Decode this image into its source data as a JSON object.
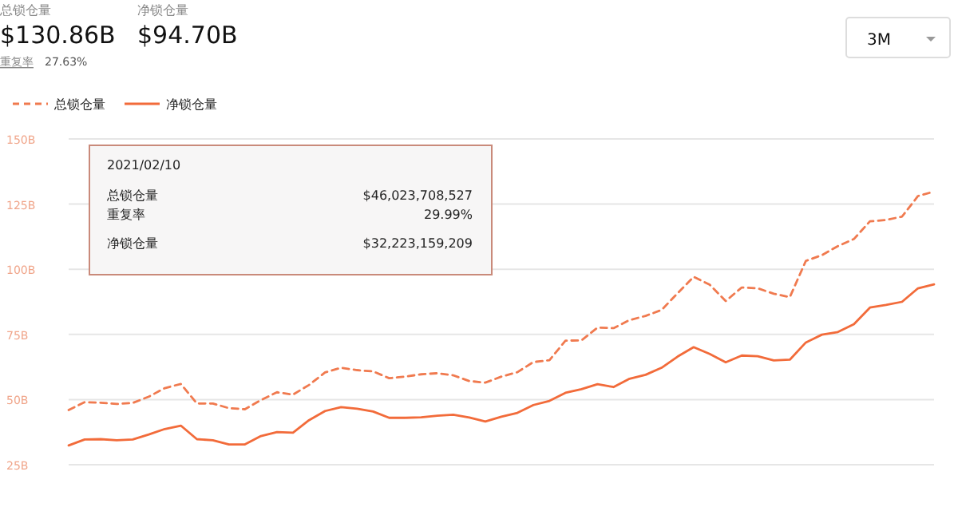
{
  "chart_data": {
    "type": "line",
    "categories": [
      null,
      null,
      null,
      null,
      null,
      null,
      null,
      null,
      null,
      null,
      null,
      null,
      null,
      null,
      null,
      null,
      null,
      null,
      null,
      null,
      null,
      null,
      null,
      null,
      null,
      null,
      null,
      null,
      null,
      null,
      null,
      null,
      null,
      null,
      null,
      null,
      null,
      null,
      null,
      null,
      null,
      null,
      null,
      null,
      null,
      null,
      null,
      null,
      null,
      null,
      null,
      null,
      null,
      null,
      null
    ],
    "series": [
      {
        "name": "总锁仓量",
        "color": "#f07a4f",
        "line_style": "dashed",
        "values": [
          46.0,
          49.0,
          48.8,
          48.3,
          48.7,
          51.1,
          54.4,
          56.0,
          48.5,
          48.5,
          46.7,
          46.3,
          49.8,
          52.8,
          51.9,
          55.6,
          60.4,
          62.2,
          61.3,
          60.8,
          58.2,
          58.8,
          59.7,
          60.1,
          59.3,
          57.1,
          56.5,
          58.8,
          60.5,
          64.4,
          65.1,
          72.6,
          72.7,
          77.6,
          77.4,
          80.5,
          82.1,
          84.4,
          90.8,
          97.1,
          94.1,
          87.8,
          93.0,
          92.7,
          90.6,
          89.3,
          103.2,
          105.4,
          108.9,
          111.6,
          118.4,
          118.9,
          120.2,
          128.1,
          129.8
        ]
      },
      {
        "name": "净锁仓量",
        "color": "#f26b3a",
        "line_style": "solid",
        "values": [
          32.4,
          34.7,
          34.8,
          34.4,
          34.7,
          36.6,
          38.7,
          40.0,
          34.8,
          34.4,
          32.8,
          32.8,
          36.0,
          37.5,
          37.3,
          42.1,
          45.6,
          47.1,
          46.5,
          45.4,
          43.0,
          43.0,
          43.2,
          43.8,
          44.2,
          43.1,
          41.6,
          43.4,
          44.9,
          47.9,
          49.5,
          52.6,
          54.0,
          55.9,
          54.8,
          58.0,
          59.5,
          62.2,
          66.5,
          70.1,
          67.5,
          64.3,
          66.9,
          66.6,
          65.0,
          65.3,
          71.9,
          74.9,
          75.9,
          78.9,
          85.3,
          86.3,
          87.5,
          92.7,
          94.2
        ]
      }
    ],
    "ylim": [
      25,
      150
    ],
    "yticks": [
      {
        "value": 25,
        "label": "25B"
      },
      {
        "value": 50,
        "label": "50B"
      },
      {
        "value": 75,
        "label": "75B"
      },
      {
        "value": 100,
        "label": "100B"
      },
      {
        "value": 125,
        "label": "125B"
      },
      {
        "value": 150,
        "label": "150B"
      }
    ],
    "grid": "y",
    "legend": "top left",
    "marker": "none",
    "tick_labels": "y",
    "annotations": [
      "总锁仓量",
      "$130.86B",
      "净锁仓量",
      "$94.70B",
      "重复率",
      "27.63%",
      "3M",
      "2021/02/10",
      "总锁仓量",
      "$46,023,708,527",
      "重复率",
      "29.99%",
      "净锁仓量",
      "$32,223,159,209"
    ]
  }
}
